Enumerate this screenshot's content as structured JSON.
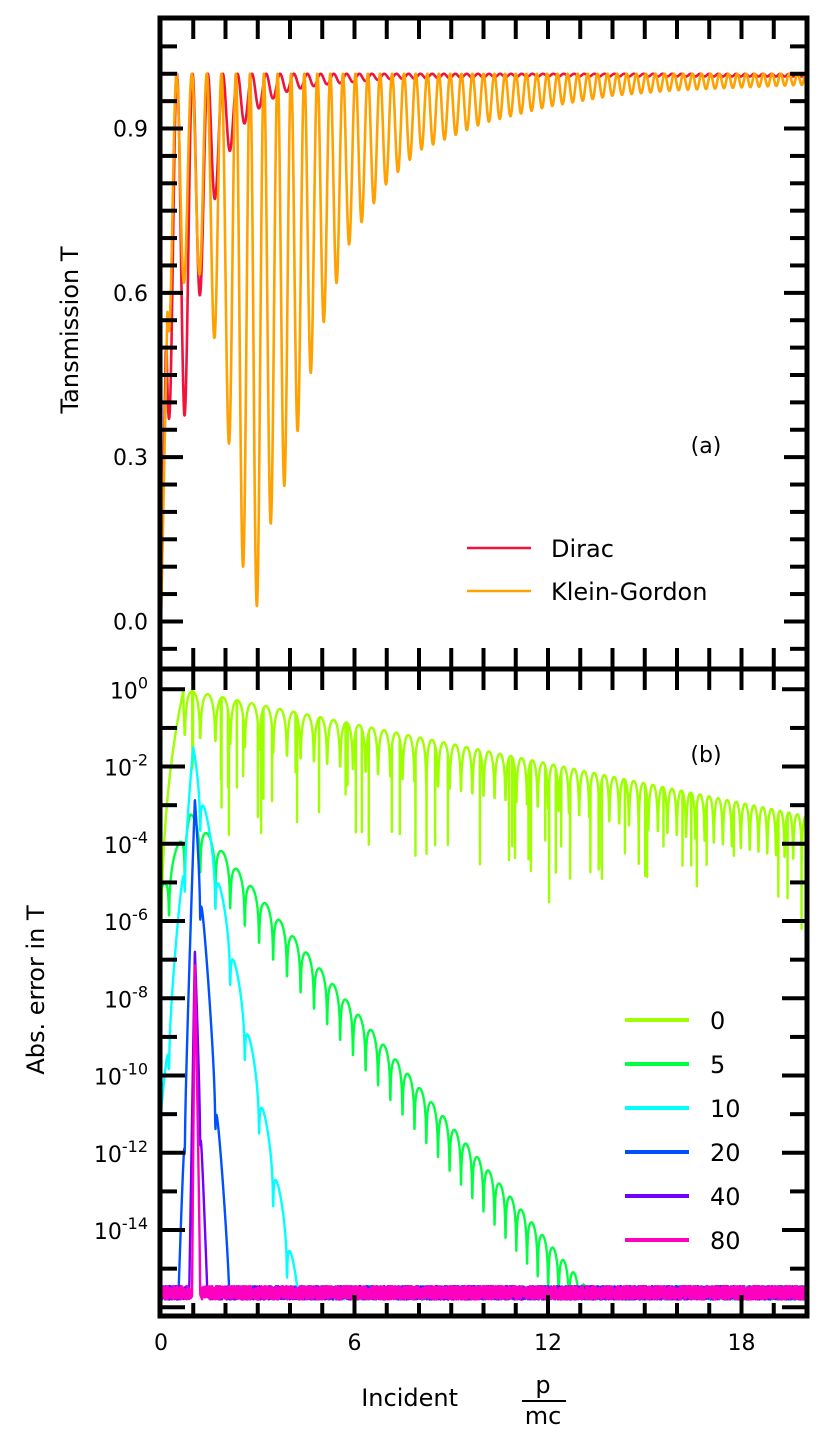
{
  "chart_data": [
    {
      "panel": "(a)",
      "type": "line",
      "ylabel": "Tansmission T",
      "xlim": [
        0,
        20
      ],
      "ylim": [
        -0.085,
        1.1
      ],
      "yticks": [
        0.0,
        0.3,
        0.6,
        0.9
      ],
      "ytick_labels": [
        "0.0",
        "0.3",
        "0.6",
        "0.9"
      ],
      "legend_loc": "lower-right",
      "series": [
        {
          "name": "Dirac",
          "color": "#f0143c",
          "model": "dirac",
          "resonance_minima": [
            [
              0.72,
              0.37
            ],
            [
              1.22,
              0.6
            ],
            [
              1.7,
              0.78
            ],
            [
              2.2,
              0.87
            ],
            [
              2.7,
              0.92
            ],
            [
              3.3,
              0.95
            ],
            [
              4.0,
              0.97
            ],
            [
              5.0,
              0.98
            ],
            [
              7.0,
              0.99
            ],
            [
              12.0,
              0.995
            ]
          ]
        },
        {
          "name": "Klein-Gordon",
          "color": "#ffa100",
          "model": "klein-gordon",
          "resonance_minima": [
            [
              0.45,
              0.53
            ],
            [
              0.9,
              0.68
            ],
            [
              1.4,
              0.6
            ],
            [
              1.95,
              0.42
            ],
            [
              2.4,
              0.14
            ],
            [
              2.9,
              0.0
            ],
            [
              3.35,
              0.17
            ],
            [
              3.9,
              0.26
            ],
            [
              4.9,
              0.52
            ],
            [
              5.9,
              0.7
            ],
            [
              7.0,
              0.8
            ],
            [
              8.0,
              0.86
            ],
            [
              10.0,
              0.91
            ],
            [
              12.0,
              0.94
            ],
            [
              14.0,
              0.96
            ],
            [
              16.0,
              0.97
            ],
            [
              18.0,
              0.975
            ],
            [
              20.0,
              0.98
            ]
          ]
        }
      ]
    },
    {
      "panel": "(b)",
      "type": "line",
      "ylabel": "Abs. error in T",
      "xlabel": "Incident",
      "xlabel_fraction": {
        "num": "p",
        "den": "mc"
      },
      "xlim": [
        0,
        20
      ],
      "xticks": [
        0,
        6,
        12,
        18
      ],
      "xtick_labels": [
        "0",
        "6",
        "12",
        "18"
      ],
      "yscale": "log",
      "ylim_log10": [
        -16.2,
        0.5
      ],
      "yticks_log10": [
        0,
        -2,
        -4,
        -6,
        -8,
        -10,
        -12,
        -14
      ],
      "ytick_labels": [
        {
          "base": "10",
          "exp": "0"
        },
        {
          "base": "10",
          "exp": "-2"
        },
        {
          "base": "10",
          "exp": "-4"
        },
        {
          "base": "10",
          "exp": "-6"
        },
        {
          "base": "10",
          "exp": "-8"
        },
        {
          "base": "10",
          "exp": "-10"
        },
        {
          "base": "10",
          "exp": "-12"
        },
        {
          "base": "10",
          "exp": "-14"
        }
      ],
      "noise_floor_log10": -15.8,
      "legend_loc": "right",
      "series": [
        {
          "name": "0",
          "color": "#9eff00",
          "peak_x": 0.7,
          "peak_log10": 0.0,
          "decay_per_unit_log10": 0.17,
          "floor_log10": -4.3
        },
        {
          "name": "5",
          "color": "#00ff40",
          "peak_x": 0.9,
          "peak_log10": -3.2,
          "decay_per_unit_log10": 1.0,
          "floor_log10": -15.8
        },
        {
          "name": "10",
          "color": "#00ffff",
          "peak_x": 1.0,
          "peak_log10": -1.5,
          "decay_per_unit_log10": 4.3,
          "floor_log10": -15.8
        },
        {
          "name": "20",
          "color": "#0050ff",
          "peak_x": 1.05,
          "peak_log10": -2.8,
          "decay_per_unit_log10": 11.5,
          "floor_log10": -15.8
        },
        {
          "name": "40",
          "color": "#7000ff",
          "peak_x": 1.05,
          "peak_log10": -6.7,
          "decay_per_unit_log10": 23.0,
          "floor_log10": -15.8
        },
        {
          "name": "80",
          "color": "#ff00c0",
          "peak_x": 1.05,
          "peak_log10": -7.0,
          "decay_per_unit_log10": 45.0,
          "floor_log10": -15.8
        }
      ]
    }
  ]
}
